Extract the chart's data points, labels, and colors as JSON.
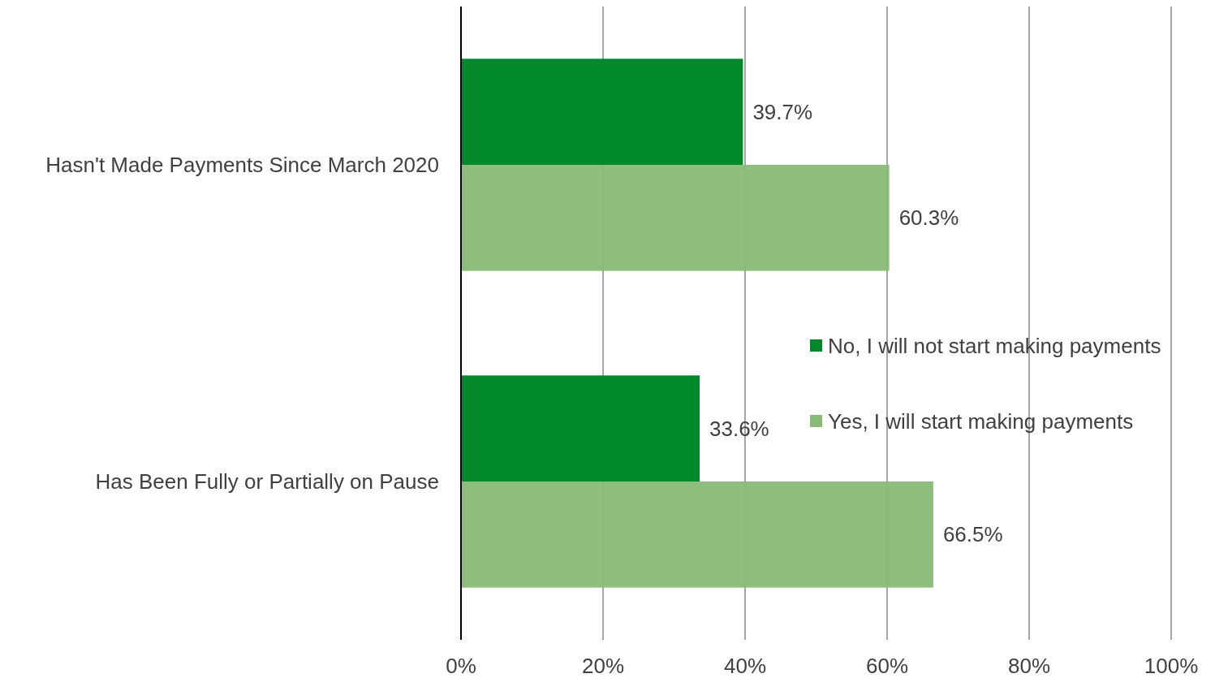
{
  "chart_data": {
    "type": "bar",
    "orientation": "horizontal",
    "categories": [
      "Hasn't Made Payments Since March 2020",
      "Has Been Fully or Partially on Pause"
    ],
    "series": [
      {
        "name": "No, I will not start making payments",
        "color": "#00882b",
        "values": [
          39.7,
          33.6
        ],
        "value_labels": [
          "39.7%",
          "33.6%"
        ]
      },
      {
        "name": "Yes, I will start making payments",
        "color": "#88bb77",
        "values": [
          60.3,
          66.5
        ],
        "value_labels": [
          "60.3%",
          "66.5%"
        ]
      }
    ],
    "xlim": [
      0,
      100
    ],
    "xticks": [
      {
        "value": 0,
        "label": "0%"
      },
      {
        "value": 20,
        "label": "20%"
      },
      {
        "value": 40,
        "label": "40%"
      },
      {
        "value": 60,
        "label": "60%"
      },
      {
        "value": 80,
        "label": "80%"
      },
      {
        "value": 100,
        "label": "100%"
      }
    ],
    "grid": "x",
    "legend": "right"
  }
}
